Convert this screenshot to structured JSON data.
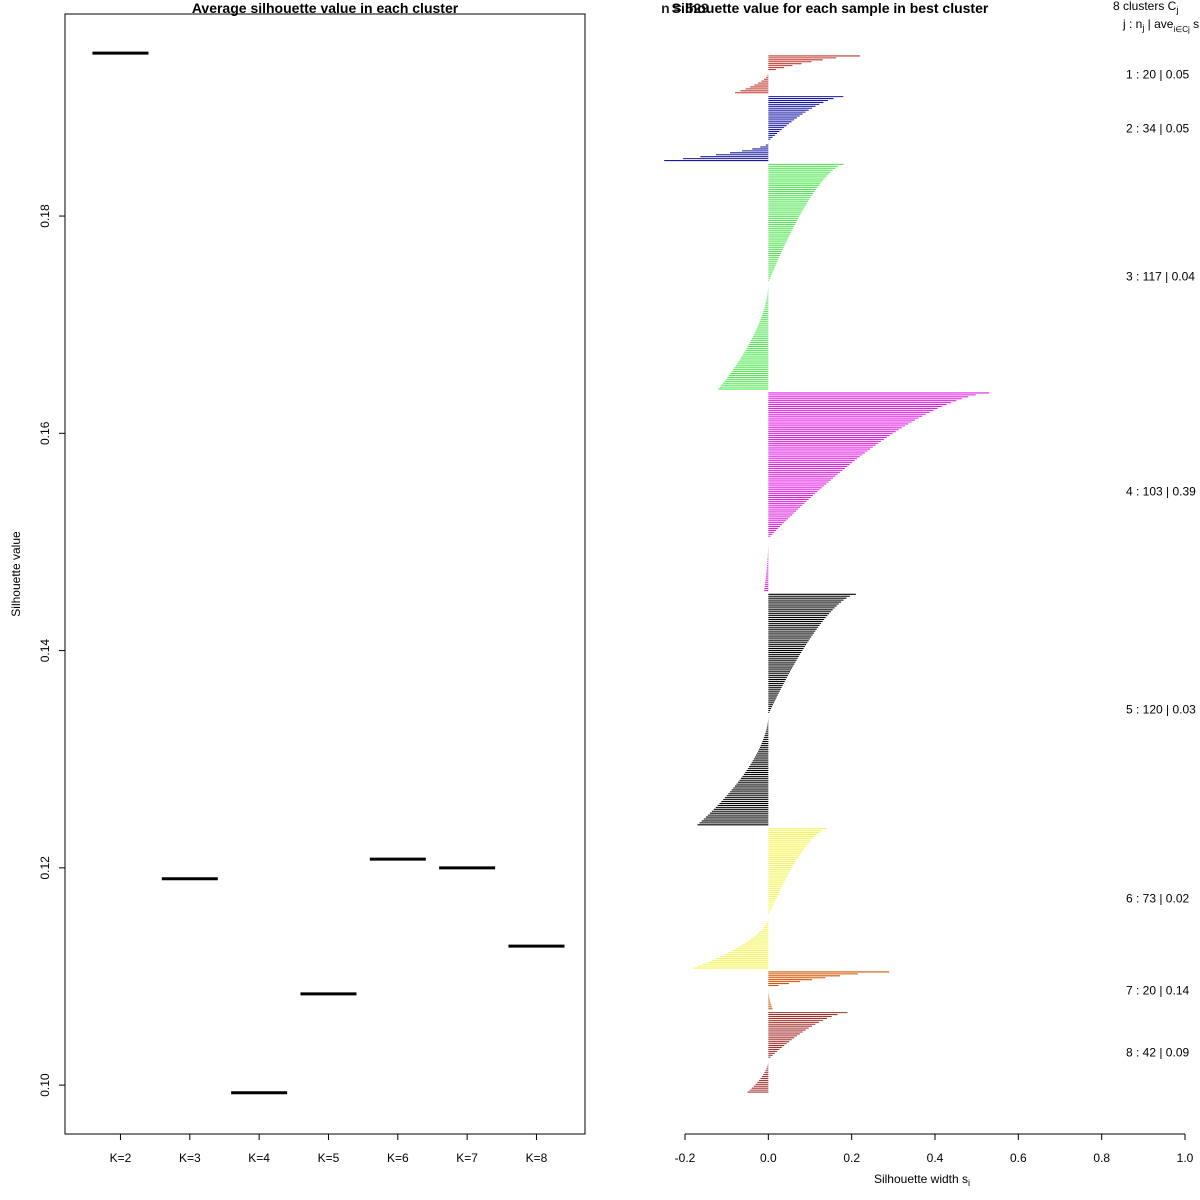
{
  "chart_data": [
    {
      "type": "scatter",
      "title": "Average silhouette value in each cluster",
      "xlabel": "",
      "ylabel": "Silhouette value",
      "categories": [
        "K=2",
        "K=3",
        "K=4",
        "K=5",
        "K=6",
        "K=7",
        "K=8"
      ],
      "values": [
        0.195,
        0.119,
        0.0993,
        0.1084,
        0.1208,
        0.12,
        0.1128
      ],
      "ylim": [
        0.0955,
        0.1986
      ],
      "yticks": [
        0.1,
        0.12,
        0.14,
        0.16,
        0.18
      ],
      "ytick_labels": [
        "0.10",
        "0.12",
        "0.14",
        "0.16",
        "0.18"
      ],
      "marker": "horizontal-segment"
    },
    {
      "type": "bar",
      "orientation": "horizontal",
      "title": "Silhouette value for each sample in best cluster",
      "overlap_text": "n = 529",
      "xlabel": "Silhouette width s",
      "xlabel_sub": "i",
      "xlim": [
        -0.2,
        1.0
      ],
      "xticks": [
        -0.2,
        0.0,
        0.2,
        0.4,
        0.6,
        0.8,
        1.0
      ],
      "xtick_labels": [
        "-0.2",
        "0.0",
        "0.2",
        "0.4",
        "0.6",
        "0.8",
        "1.0"
      ],
      "n": 529,
      "legend_header": {
        "line1": "8  clusters  C",
        "line1_sub": "j",
        "line2": "j :  n",
        "line2_sub": "j",
        "line2_rest": " | ave",
        "line2_sub2": "i∈Cj",
        "line2_end": "  s"
      },
      "clusters": [
        {
          "id": 1,
          "n": 20,
          "ave": 0.05,
          "max": 0.22,
          "min": -0.08,
          "color": "#c0392b",
          "label": "1 :  20  |  0.05"
        },
        {
          "id": 2,
          "n": 34,
          "ave": 0.05,
          "max": 0.18,
          "min": -0.25,
          "color": "#1a1aa6",
          "label": "2 :  34  |  0.05"
        },
        {
          "id": 3,
          "n": 117,
          "ave": 0.04,
          "max": 0.18,
          "min": -0.12,
          "color": "#55e655",
          "label": "3 :  117  |  0.04"
        },
        {
          "id": 4,
          "n": 103,
          "ave": 0.39,
          "max": 0.53,
          "min": -0.01,
          "color": "#e020e0",
          "label": "4 :  103  |  0.39"
        },
        {
          "id": 5,
          "n": 120,
          "ave": 0.03,
          "max": 0.21,
          "min": -0.17,
          "color": "#000000",
          "label": "5 :  120  |  0.03"
        },
        {
          "id": 6,
          "n": 73,
          "ave": 0.02,
          "max": 0.14,
          "min": -0.18,
          "color": "#f5f55a",
          "label": "6 :  73  |  0.02"
        },
        {
          "id": 7,
          "n": 20,
          "ave": 0.14,
          "max": 0.29,
          "min": 0.01,
          "color": "#d35400",
          "label": "7 :  20  |  0.14"
        },
        {
          "id": 8,
          "n": 42,
          "ave": 0.09,
          "max": 0.19,
          "min": -0.05,
          "color": "#a0322d",
          "label": "8 :  42  |  0.09"
        }
      ]
    }
  ]
}
